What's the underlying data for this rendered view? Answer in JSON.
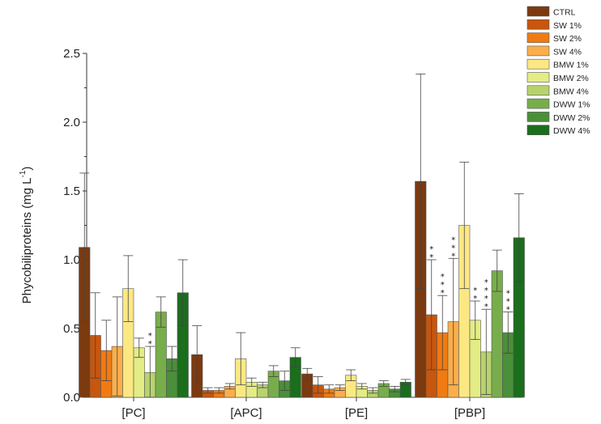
{
  "chart_data": {
    "type": "bar",
    "title": "",
    "xlabel": "",
    "ylabel": "Phycobiliproteins (mg L",
    "ylabel_sup": "-1",
    "ylabel_close": ")",
    "ylim": [
      0,
      2.5
    ],
    "yticks": [
      "0.0",
      "0.5",
      "1.0",
      "1.5",
      "2.0",
      "2.5"
    ],
    "categories": [
      "[PC]",
      "[APC]",
      "[PE]",
      "[PBP]"
    ],
    "legend_position": "top-right",
    "series": [
      {
        "name": "CTRL",
        "color": "#7b3a10",
        "values": [
          1.09,
          0.31,
          0.17,
          1.57
        ],
        "errors": [
          0.54,
          0.21,
          0.04,
          0.78
        ]
      },
      {
        "name": "SW 1%",
        "color": "#c8560c",
        "values": [
          0.45,
          0.05,
          0.09,
          0.6
        ],
        "errors": [
          0.31,
          0.02,
          0.06,
          0.4
        ]
      },
      {
        "name": "SW 2%",
        "color": "#f07b12",
        "values": [
          0.34,
          0.05,
          0.06,
          0.47
        ],
        "errors": [
          0.22,
          0.02,
          0.03,
          0.27
        ]
      },
      {
        "name": "SW 4%",
        "color": "#fbae4b",
        "values": [
          0.37,
          0.08,
          0.07,
          0.55
        ],
        "errors": [
          0.36,
          0.02,
          0.02,
          0.46
        ]
      },
      {
        "name": "BMW 1%",
        "color": "#fce883",
        "values": [
          0.79,
          0.28,
          0.16,
          1.25
        ],
        "errors": [
          0.24,
          0.19,
          0.04,
          0.46
        ]
      },
      {
        "name": "BMW 2%",
        "color": "#e4ec84",
        "values": [
          0.36,
          0.11,
          0.08,
          0.56
        ],
        "errors": [
          0.07,
          0.03,
          0.02,
          0.14
        ]
      },
      {
        "name": "BMW 4%",
        "color": "#b7d36e",
        "values": [
          0.18,
          0.09,
          0.05,
          0.33
        ],
        "errors": [
          0.19,
          0.02,
          0.02,
          0.31
        ]
      },
      {
        "name": "DWW 1%",
        "color": "#78ad4c",
        "values": [
          0.62,
          0.19,
          0.1,
          0.92
        ],
        "errors": [
          0.11,
          0.04,
          0.02,
          0.15
        ]
      },
      {
        "name": "DWW 2%",
        "color": "#4a8f39",
        "values": [
          0.28,
          0.12,
          0.06,
          0.47
        ],
        "errors": [
          0.09,
          0.07,
          0.02,
          0.15
        ]
      },
      {
        "name": "DWW 4%",
        "color": "#1a6e1c",
        "values": [
          0.76,
          0.29,
          0.11,
          1.16
        ],
        "errors": [
          0.24,
          0.07,
          0.02,
          0.32
        ]
      }
    ],
    "annotations": [
      {
        "category": 0,
        "series": 6,
        "text": "**"
      },
      {
        "category": 3,
        "series": 1,
        "text": "**"
      },
      {
        "category": 3,
        "series": 2,
        "text": "***"
      },
      {
        "category": 3,
        "series": 3,
        "text": "***"
      },
      {
        "category": 3,
        "series": 5,
        "text": "**"
      },
      {
        "category": 3,
        "series": 6,
        "text": "****"
      },
      {
        "category": 3,
        "series": 8,
        "text": "***"
      }
    ]
  }
}
